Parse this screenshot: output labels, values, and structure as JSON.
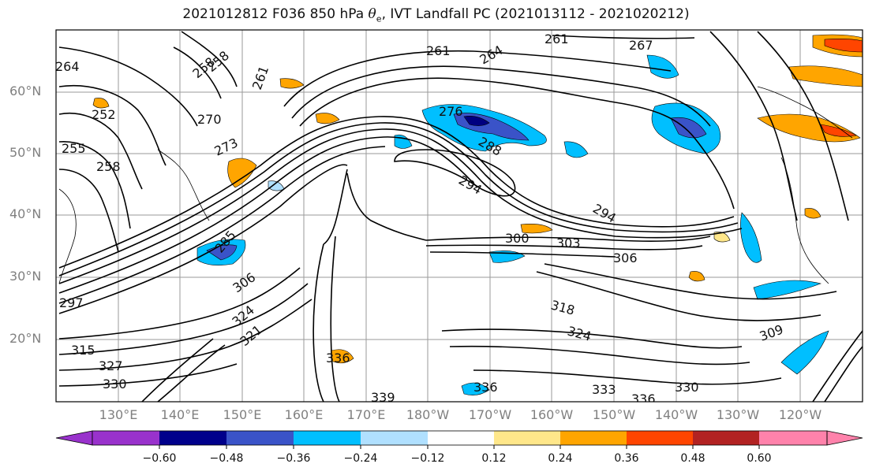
{
  "title": {
    "prefix": "2021012812 F036 850 hPa ",
    "symbol": "θ",
    "subscript": "e",
    "suffix": ", IVT Landfall PC (2021013112 - 2021020212)"
  },
  "map": {
    "lat_labels": [
      "60°N",
      "50°N",
      "40°N",
      "30°N",
      "20°N"
    ],
    "lon_labels": [
      "130°E",
      "140°E",
      "150°E",
      "160°E",
      "170°E",
      "180°W",
      "170°W",
      "160°W",
      "150°W",
      "140°W",
      "130°W",
      "120°W"
    ],
    "contour_labels": [
      "264",
      "258",
      "258",
      "261",
      "252",
      "255",
      "258",
      "270",
      "273",
      "261",
      "264",
      "267",
      "261",
      "276",
      "288",
      "294",
      "294",
      "285",
      "300",
      "303",
      "306",
      "297",
      "306",
      "324",
      "321",
      "318",
      "324",
      "309",
      "315",
      "327",
      "330",
      "336",
      "336",
      "339",
      "333",
      "336",
      "330"
    ],
    "shading_colors": {
      "negative_strong": "#000080",
      "negative_mid": "#3a53c8",
      "negative_light": "#00bfff",
      "negative_faint": "#b0e0ff",
      "positive_faint": "#ffe78a",
      "positive_mid": "#ffa500",
      "positive_strong": "#ff4500"
    }
  },
  "colorbar": {
    "colors": [
      "#9932cc",
      "#00008b",
      "#3a53c8",
      "#00bfff",
      "#b0e0ff",
      "#ffffff",
      "#ffe78a",
      "#ffa500",
      "#ff4500",
      "#b22222",
      "#ff82ab"
    ],
    "tick_labels": [
      "−0.60",
      "−0.48",
      "−0.36",
      "−0.24",
      "−0.12",
      "0.12",
      "0.24",
      "0.36",
      "0.48",
      "0.60"
    ]
  }
}
